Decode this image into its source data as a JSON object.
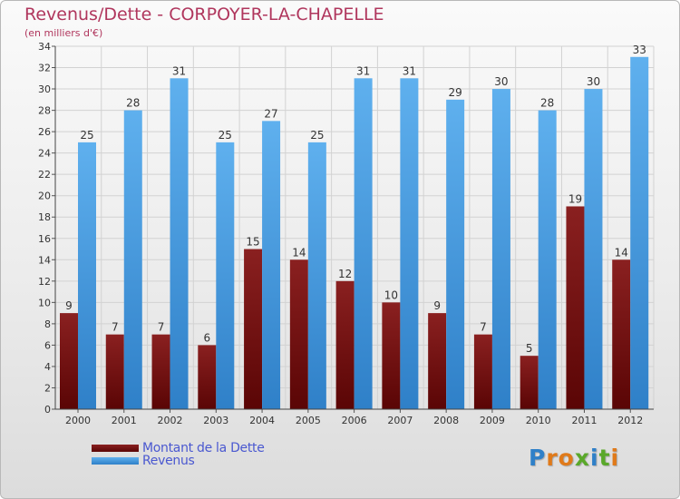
{
  "title": "Revenus/Dette - CORPOYER-LA-CHAPELLE",
  "subtitle": "(en milliers d'€)",
  "logo_text": "Proxiti",
  "colors": {
    "title": "#b0365d",
    "debt": "#7a1010",
    "revenue": "#4d9ee0",
    "legend_text": "#4a58d0"
  },
  "chart_data": {
    "type": "bar",
    "title": "Revenus/Dette - CORPOYER-LA-CHAPELLE",
    "subtitle": "(en milliers d'€)",
    "categories": [
      "2000",
      "2001",
      "2002",
      "2003",
      "2004",
      "2005",
      "2006",
      "2007",
      "2008",
      "2009",
      "2010",
      "2011",
      "2012"
    ],
    "series": [
      {
        "name": "Montant de la Dette",
        "values": [
          9,
          7,
          7,
          6,
          15,
          14,
          12,
          10,
          9,
          7,
          5,
          19,
          14
        ],
        "color": "#7a1010"
      },
      {
        "name": "Revenus",
        "values": [
          25,
          28,
          31,
          25,
          27,
          25,
          31,
          31,
          29,
          30,
          28,
          30,
          33
        ],
        "color": "#4d9ee0"
      }
    ],
    "ylim": [
      0,
      34
    ],
    "yticks": [
      0,
      2,
      4,
      6,
      8,
      10,
      12,
      14,
      16,
      18,
      20,
      22,
      24,
      26,
      28,
      30,
      32,
      34
    ],
    "grid": true,
    "legend": "bottom-left"
  }
}
